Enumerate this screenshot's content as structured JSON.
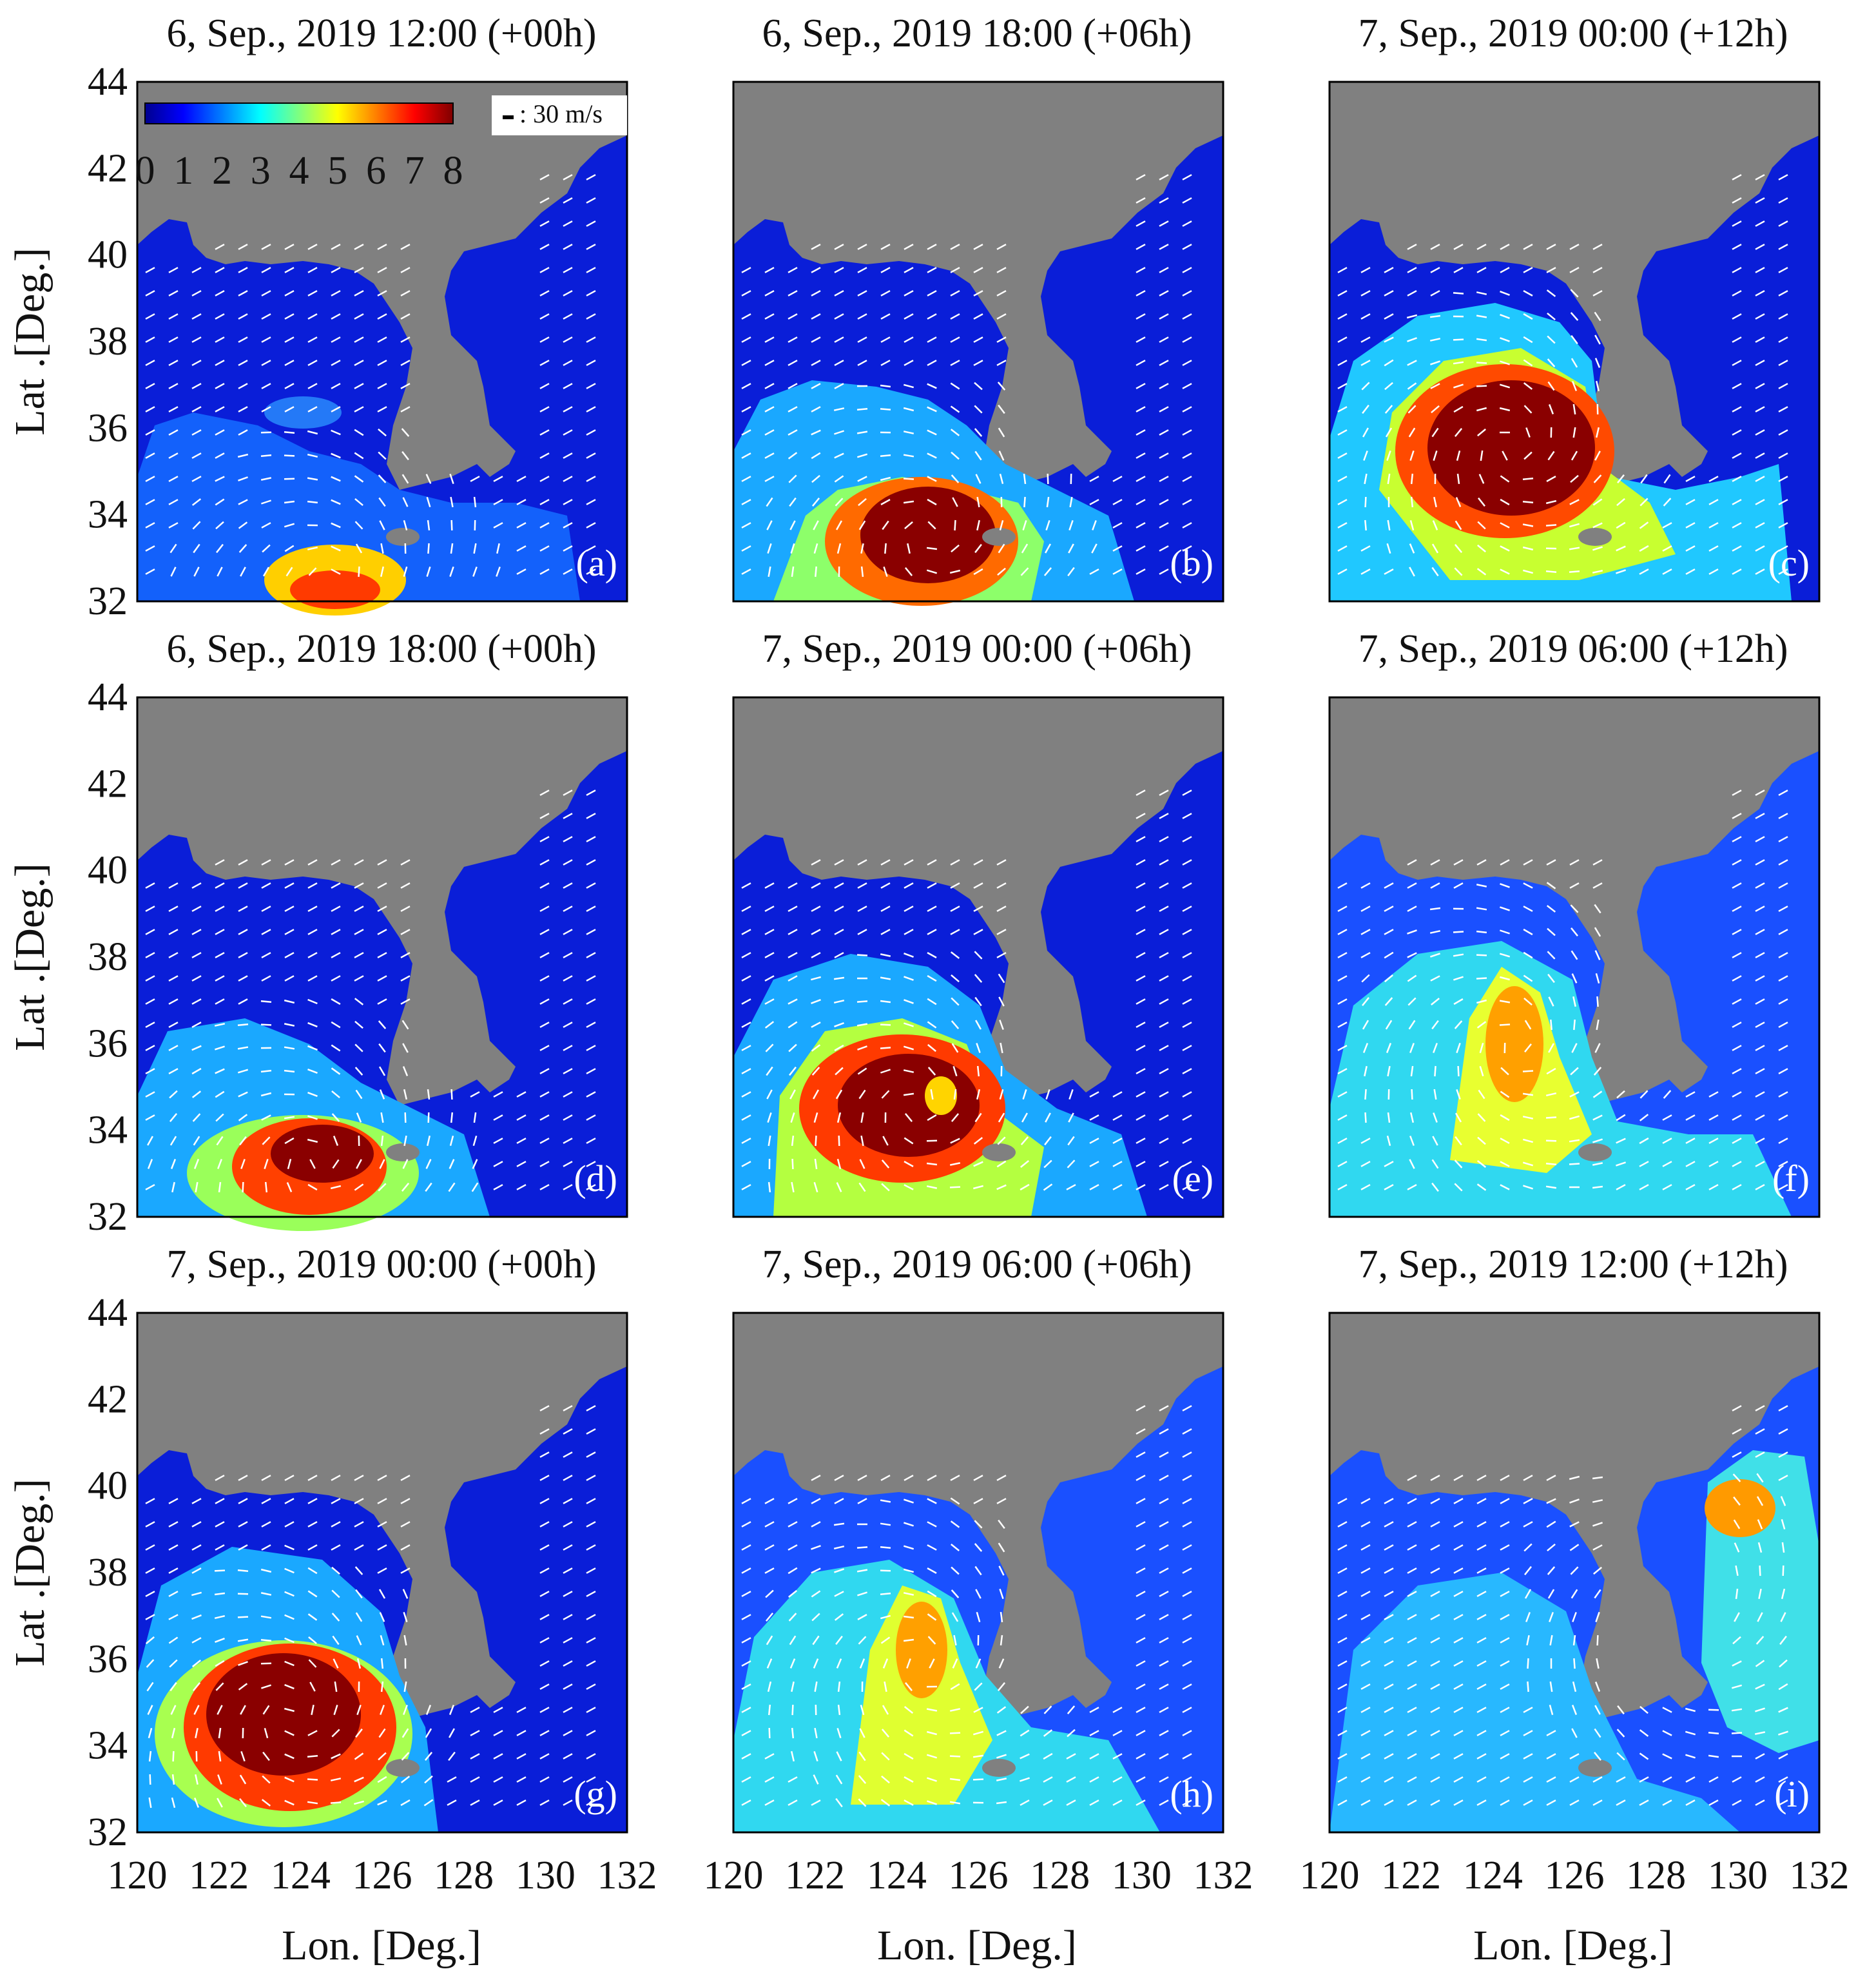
{
  "figure": {
    "colorbar": {
      "ticks": [
        "0",
        "1",
        "2",
        "3",
        "4",
        "5",
        "6",
        "7",
        "8"
      ]
    },
    "vector_legend": {
      "label": ": 30 m/s"
    },
    "axes": {
      "xlabel": "Lon. [Deg.]",
      "ylabel": "Lat .[Deg.]",
      "xticks": [
        "120",
        "122",
        "124",
        "126",
        "128",
        "130",
        "132"
      ],
      "yticks": [
        "44",
        "42",
        "40",
        "38",
        "36",
        "34",
        "32"
      ]
    },
    "colors": {
      "land": "#808080",
      "vectors": "#ffffff",
      "colormap": [
        "#00008f",
        "#0000ff",
        "#007fff",
        "#00ffff",
        "#7fff7f",
        "#ffff00",
        "#ff7f00",
        "#ff0000",
        "#7f0000"
      ]
    },
    "panels": [
      {
        "label": "(a)",
        "title": "6, Sep., 2019 12:00 (+00h)"
      },
      {
        "label": "(b)",
        "title": "6, Sep., 2019 18:00 (+06h)"
      },
      {
        "label": "(c)",
        "title": "7, Sep., 2019 00:00 (+12h)"
      },
      {
        "label": "(d)",
        "title": "6, Sep., 2019 18:00 (+00h)"
      },
      {
        "label": "(e)",
        "title": "7, Sep., 2019 00:00 (+06h)"
      },
      {
        "label": "(f)",
        "title": "7, Sep., 2019 06:00 (+12h)"
      },
      {
        "label": "(g)",
        "title": "7, Sep., 2019 00:00 (+00h)"
      },
      {
        "label": "(h)",
        "title": "7, Sep., 2019 06:00 (+06h)"
      },
      {
        "label": "(i)",
        "title": "7, Sep., 2019 12:00 (+12h)"
      }
    ]
  }
}
